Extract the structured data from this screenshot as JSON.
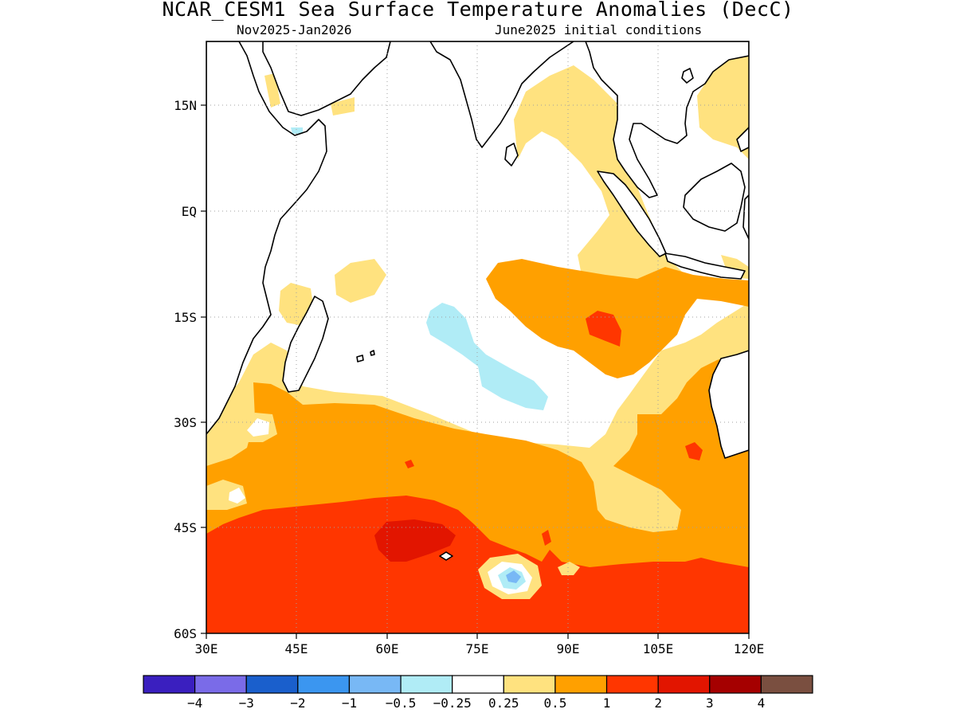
{
  "title": "NCAR_CESM1 Sea Surface Temperature Anomalies (DecC)",
  "subtitle_left": "Nov2025-Jan2026",
  "subtitle_right": "June2025 initial conditions",
  "map": {
    "lon_range": [
      30,
      120
    ],
    "lat_range": [
      -60,
      24
    ],
    "grid": "dotted",
    "lat_ticks": [
      {
        "value": 15,
        "label": "15N"
      },
      {
        "value": 0,
        "label": "EQ"
      },
      {
        "value": -15,
        "label": "15S"
      },
      {
        "value": -30,
        "label": "30S"
      },
      {
        "value": -45,
        "label": "45S"
      },
      {
        "value": -60,
        "label": "60S"
      }
    ],
    "lon_ticks": [
      {
        "value": 30,
        "label": "30E"
      },
      {
        "value": 45,
        "label": "45E"
      },
      {
        "value": 60,
        "label": "60E"
      },
      {
        "value": 75,
        "label": "75E"
      },
      {
        "value": 90,
        "label": "90E"
      },
      {
        "value": 105,
        "label": "105E"
      },
      {
        "value": 120,
        "label": "120E"
      }
    ],
    "land_color": "#ffffff",
    "coastline_color": "#000000"
  },
  "colorbar": {
    "colors": [
      "#3a1fbf",
      "#7a6be8",
      "#1a5fcc",
      "#3b96f0",
      "#78b8f5",
      "#b0ecf6",
      "#ffffff",
      "#ffe27f",
      "#ffa000",
      "#ff3600",
      "#e21500",
      "#a50000",
      "#7a4f40"
    ],
    "labels": [
      "-4",
      "-3",
      "-2",
      "-1",
      "-0.5",
      "-0.25",
      "0.25",
      "0.5",
      "1",
      "2",
      "3",
      "4"
    ]
  }
}
